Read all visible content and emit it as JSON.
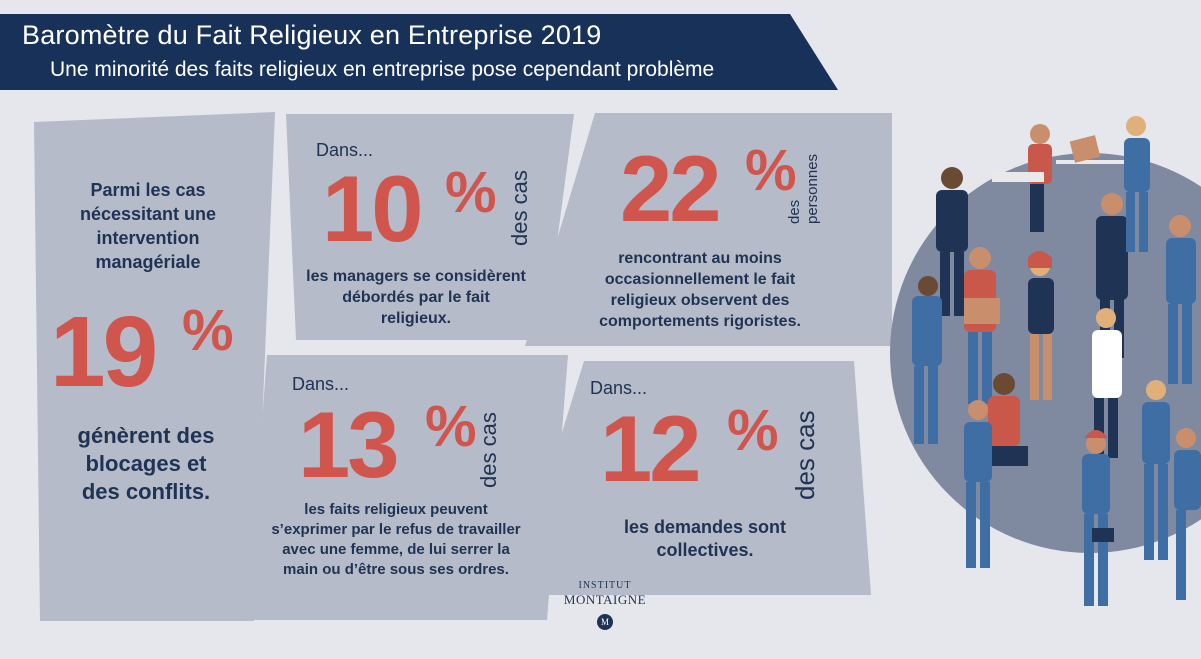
{
  "header": {
    "title": "Baromètre du Fait Religieux en Entreprise 2019",
    "subtitle": "Une minorité des faits religieux en entreprise pose cependant problème"
  },
  "panel1": {
    "intro": "Parmi les cas nécessitant une intervention managériale",
    "number": "19",
    "percent": "%",
    "text": "génèrent des blocages et des conflits."
  },
  "panel2": {
    "lead": "Dans...",
    "number": "10",
    "percent": "%",
    "side": "des cas",
    "text": "les managers se considèrent débordés par le fait religieux."
  },
  "panel3": {
    "number": "22",
    "percent": "%",
    "side1": "des",
    "side2": "personnes",
    "text": "rencontrant au moins occasionnellement le fait religieux observent des comportements rigoristes."
  },
  "panel4": {
    "lead": "Dans...",
    "number": "13",
    "percent": "%",
    "side": "des cas",
    "text": "les faits religieux peuvent s’exprimer par le refus de travailler avec une femme, de lui serrer la main ou d’être sous ses ordres."
  },
  "panel5": {
    "lead": "Dans...",
    "number": "12",
    "percent": "%",
    "side": "des cas",
    "text": "les demandes sont collectives."
  },
  "logo": {
    "line1": "INSTITUT",
    "line2": "MONTAIGNE",
    "mark": "M"
  },
  "colors": {
    "navy": "#173159",
    "accent": "#d0564d",
    "panel": "#b5bbc8",
    "background": "#e5e7ec"
  }
}
